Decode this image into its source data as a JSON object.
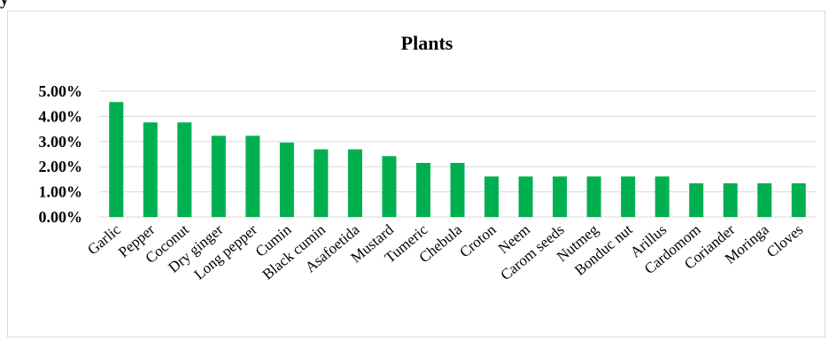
{
  "page": {
    "top_text": "y"
  },
  "chart_data": {
    "type": "bar",
    "title": "Plants",
    "xlabel": "",
    "ylabel": "",
    "categories": [
      "Garlic",
      "Pepper",
      "Coconut",
      "Dry ginger",
      "Long pepper",
      "Cumin",
      "Black cumin",
      "Asafoetida",
      "Mustard",
      "Tumeric",
      "Chebula",
      "Croton",
      "Neem",
      "Carom seeds",
      "Nutmeg",
      "Bonduc nut",
      "Arillus",
      "Cardomom",
      "Coriander",
      "Moringa",
      "Cloves"
    ],
    "values": [
      4.57,
      3.76,
      3.76,
      3.23,
      3.23,
      2.96,
      2.69,
      2.69,
      2.42,
      2.15,
      2.15,
      1.61,
      1.61,
      1.61,
      1.61,
      1.61,
      1.61,
      1.34,
      1.34,
      1.34,
      1.34
    ],
    "value_unit": "%",
    "ylim": [
      0,
      5
    ],
    "yticks": [
      "0.00%",
      "1.00%",
      "2.00%",
      "3.00%",
      "4.00%",
      "5.00%"
    ],
    "grid": true,
    "legend": "none",
    "bar_color": "#00b050",
    "grid_color": "#d9d9d9"
  }
}
